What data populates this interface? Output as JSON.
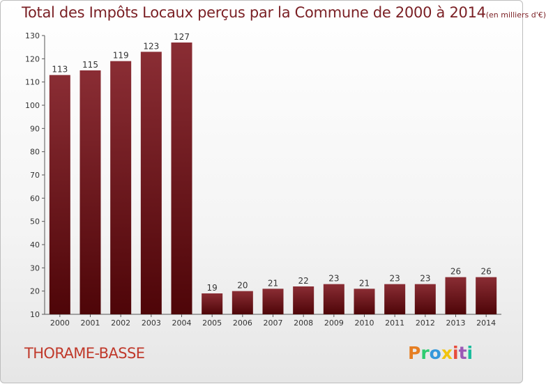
{
  "header": {
    "title": "Total des Impôts Locaux perçus par la Commune de 2000 à 2014",
    "unit": "(en milliers d'€)"
  },
  "footer": {
    "commune": "THORAME-BASSE",
    "logo_text": "Proxiti"
  },
  "colors": {
    "bar_top": "#8a2d34",
    "bar_bottom": "#4e0508",
    "title": "#7a1f24",
    "commune": "#c0392b",
    "logo": [
      "#e67e22",
      "#2ecc71",
      "#3498db",
      "#f1c40f",
      "#e74c3c",
      "#9b59b6",
      "#1abc9c"
    ]
  },
  "chart_data": {
    "type": "bar",
    "title": "Total des Impôts Locaux perçus par la Commune de 2000 à 2014 (en milliers d'€)",
    "xlabel": "",
    "ylabel": "",
    "categories": [
      "2000",
      "2001",
      "2002",
      "2003",
      "2004",
      "2005",
      "2006",
      "2007",
      "2008",
      "2009",
      "2010",
      "2011",
      "2012",
      "2013",
      "2014"
    ],
    "values": [
      113,
      115,
      119,
      123,
      127,
      19,
      20,
      21,
      22,
      23,
      21,
      23,
      23,
      26,
      26
    ],
    "ylim": [
      10,
      130
    ],
    "yticks": [
      10,
      20,
      30,
      40,
      50,
      60,
      70,
      80,
      90,
      100,
      110,
      120,
      130
    ],
    "grid": false,
    "legend": "none"
  }
}
